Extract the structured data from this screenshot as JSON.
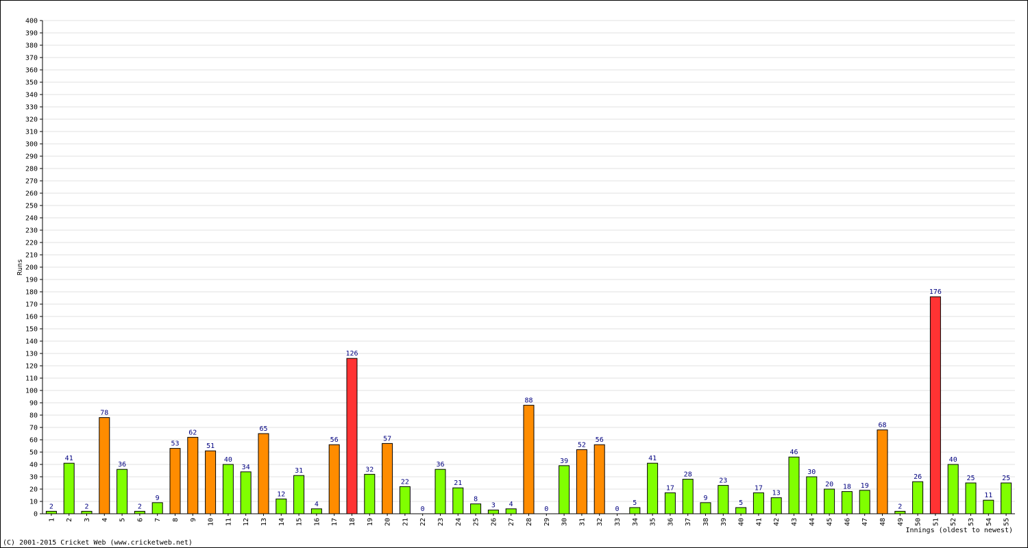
{
  "chart_data": {
    "type": "bar",
    "ylabel": "Runs",
    "xlabel": "Innings (oldest to newest)",
    "footer": "(C) 2001-2015 Cricket Web (www.cricketweb.net)",
    "categories": [
      1,
      2,
      3,
      4,
      5,
      6,
      7,
      8,
      9,
      10,
      11,
      12,
      13,
      14,
      15,
      16,
      17,
      18,
      19,
      20,
      21,
      22,
      23,
      24,
      25,
      26,
      27,
      28,
      29,
      30,
      31,
      32,
      33,
      34,
      35,
      36,
      37,
      38,
      39,
      40,
      41,
      42,
      43,
      44,
      45,
      46,
      47,
      48,
      49,
      50,
      51,
      52,
      53,
      54,
      55
    ],
    "values": [
      2,
      41,
      2,
      78,
      36,
      2,
      9,
      53,
      62,
      51,
      40,
      34,
      65,
      12,
      31,
      4,
      56,
      126,
      32,
      57,
      22,
      0,
      36,
      21,
      8,
      3,
      4,
      88,
      0,
      39,
      52,
      56,
      0,
      5,
      41,
      17,
      28,
      9,
      23,
      5,
      17,
      13,
      46,
      30,
      20,
      18,
      19,
      68,
      2,
      26,
      176,
      40,
      25,
      11,
      25
    ],
    "colors": [
      "#80ff00",
      "#80ff00",
      "#80ff00",
      "#ff8c00",
      "#80ff00",
      "#80ff00",
      "#80ff00",
      "#ff8c00",
      "#ff8c00",
      "#ff8c00",
      "#80ff00",
      "#80ff00",
      "#ff8c00",
      "#80ff00",
      "#80ff00",
      "#80ff00",
      "#ff8c00",
      "#ff3333",
      "#80ff00",
      "#ff8c00",
      "#80ff00",
      "#80ff00",
      "#80ff00",
      "#80ff00",
      "#80ff00",
      "#80ff00",
      "#80ff00",
      "#ff8c00",
      "#80ff00",
      "#80ff00",
      "#ff8c00",
      "#ff8c00",
      "#80ff00",
      "#80ff00",
      "#80ff00",
      "#80ff00",
      "#80ff00",
      "#80ff00",
      "#80ff00",
      "#80ff00",
      "#80ff00",
      "#80ff00",
      "#80ff00",
      "#80ff00",
      "#80ff00",
      "#80ff00",
      "#80ff00",
      "#ff8c00",
      "#80ff00",
      "#80ff00",
      "#ff3333",
      "#80ff00",
      "#80ff00",
      "#80ff00",
      "#80ff00"
    ],
    "ylim": [
      0,
      400
    ],
    "yticks": [
      0,
      10,
      20,
      30,
      40,
      50,
      60,
      70,
      80,
      90,
      100,
      110,
      120,
      130,
      140,
      150,
      160,
      170,
      180,
      190,
      200,
      210,
      220,
      230,
      240,
      250,
      260,
      270,
      280,
      290,
      300,
      310,
      320,
      330,
      340,
      350,
      360,
      370,
      380,
      390,
      400
    ],
    "grid": true
  }
}
